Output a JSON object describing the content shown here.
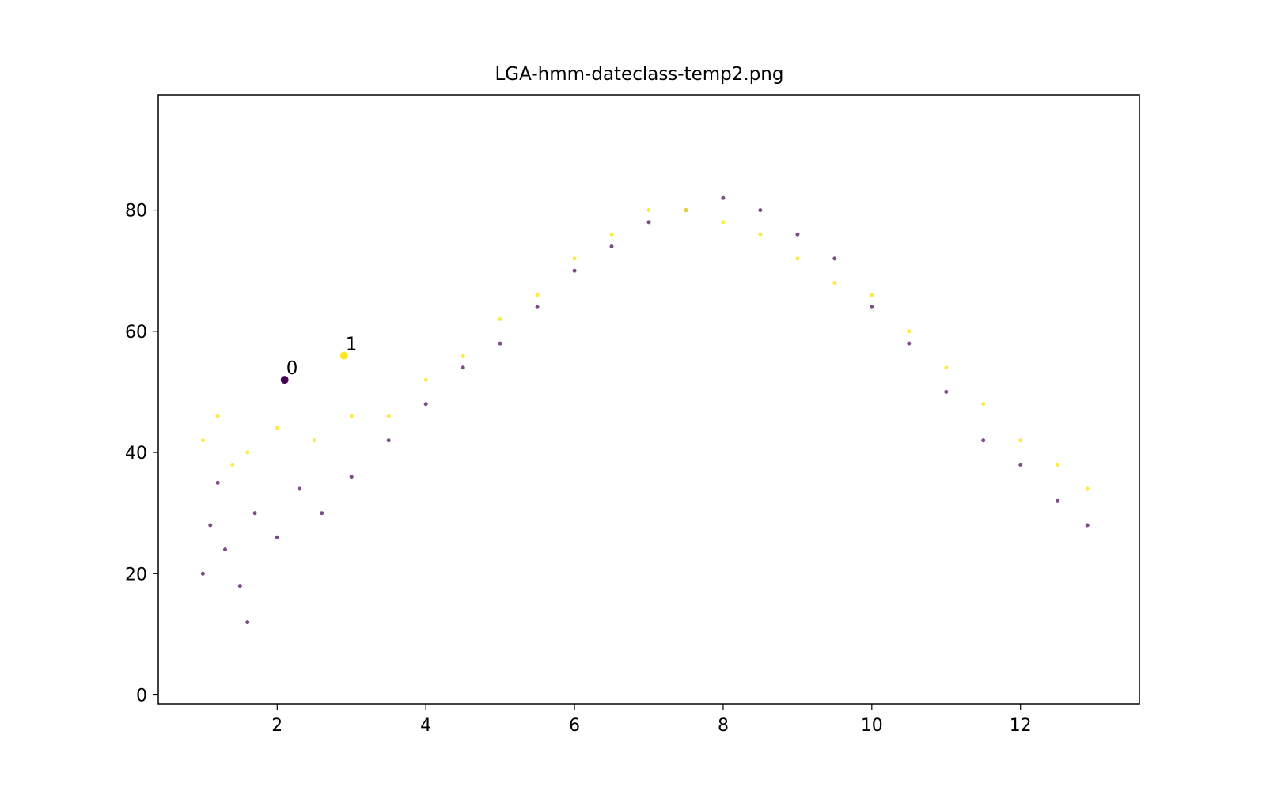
{
  "chart_data": {
    "type": "scatter",
    "title": "LGA-hmm-dateclass-temp2.png",
    "xlabel": "",
    "ylabel": "",
    "xlim": [
      0.4,
      13.6
    ],
    "ylim": [
      -1.5,
      99
    ],
    "x_ticks": [
      2,
      4,
      6,
      8,
      10,
      12
    ],
    "y_ticks": [
      0,
      20,
      40,
      60,
      80
    ],
    "grid": false,
    "legend": "none",
    "colors": {
      "class_0": "#440154",
      "class_1": "#fde725",
      "axis": "#000000"
    },
    "cluster_centers": [
      {
        "label": "0",
        "x": 2.1,
        "y": 52,
        "class": 0
      },
      {
        "label": "1",
        "x": 2.9,
        "y": 56,
        "class": 1
      }
    ],
    "series": [
      {
        "class": 0,
        "values": [
          [
            1.0,
            20
          ],
          [
            1.1,
            28
          ],
          [
            1.2,
            35
          ],
          [
            1.3,
            24
          ],
          [
            1.5,
            18
          ],
          [
            1.6,
            12
          ],
          [
            1.7,
            30
          ],
          [
            2.0,
            26
          ],
          [
            2.3,
            34
          ],
          [
            2.6,
            30
          ],
          [
            3.0,
            36
          ],
          [
            3.5,
            42
          ],
          [
            4.0,
            48
          ],
          [
            4.5,
            54
          ],
          [
            5.0,
            58
          ],
          [
            5.5,
            64
          ],
          [
            6.0,
            70
          ],
          [
            6.5,
            74
          ],
          [
            7.0,
            78
          ],
          [
            7.5,
            80
          ],
          [
            8.0,
            82
          ],
          [
            8.5,
            80
          ],
          [
            9.0,
            76
          ],
          [
            9.5,
            72
          ],
          [
            10.0,
            64
          ],
          [
            10.5,
            58
          ],
          [
            11.0,
            50
          ],
          [
            11.5,
            42
          ],
          [
            12.0,
            38
          ],
          [
            12.5,
            32
          ],
          [
            12.9,
            28
          ]
        ]
      },
      {
        "class": 1,
        "values": [
          [
            1.0,
            42
          ],
          [
            1.2,
            46
          ],
          [
            1.4,
            38
          ],
          [
            1.6,
            40
          ],
          [
            2.0,
            44
          ],
          [
            2.5,
            42
          ],
          [
            3.0,
            46
          ],
          [
            3.5,
            46
          ],
          [
            4.0,
            52
          ],
          [
            4.5,
            56
          ],
          [
            5.0,
            62
          ],
          [
            5.5,
            66
          ],
          [
            6.0,
            72
          ],
          [
            6.5,
            76
          ],
          [
            7.0,
            80
          ],
          [
            7.5,
            80
          ],
          [
            8.0,
            78
          ],
          [
            8.5,
            76
          ],
          [
            9.0,
            72
          ],
          [
            9.5,
            68
          ],
          [
            10.0,
            66
          ],
          [
            10.5,
            60
          ],
          [
            11.0,
            54
          ],
          [
            11.5,
            48
          ],
          [
            12.0,
            42
          ],
          [
            12.5,
            38
          ],
          [
            12.9,
            34
          ]
        ]
      }
    ]
  }
}
